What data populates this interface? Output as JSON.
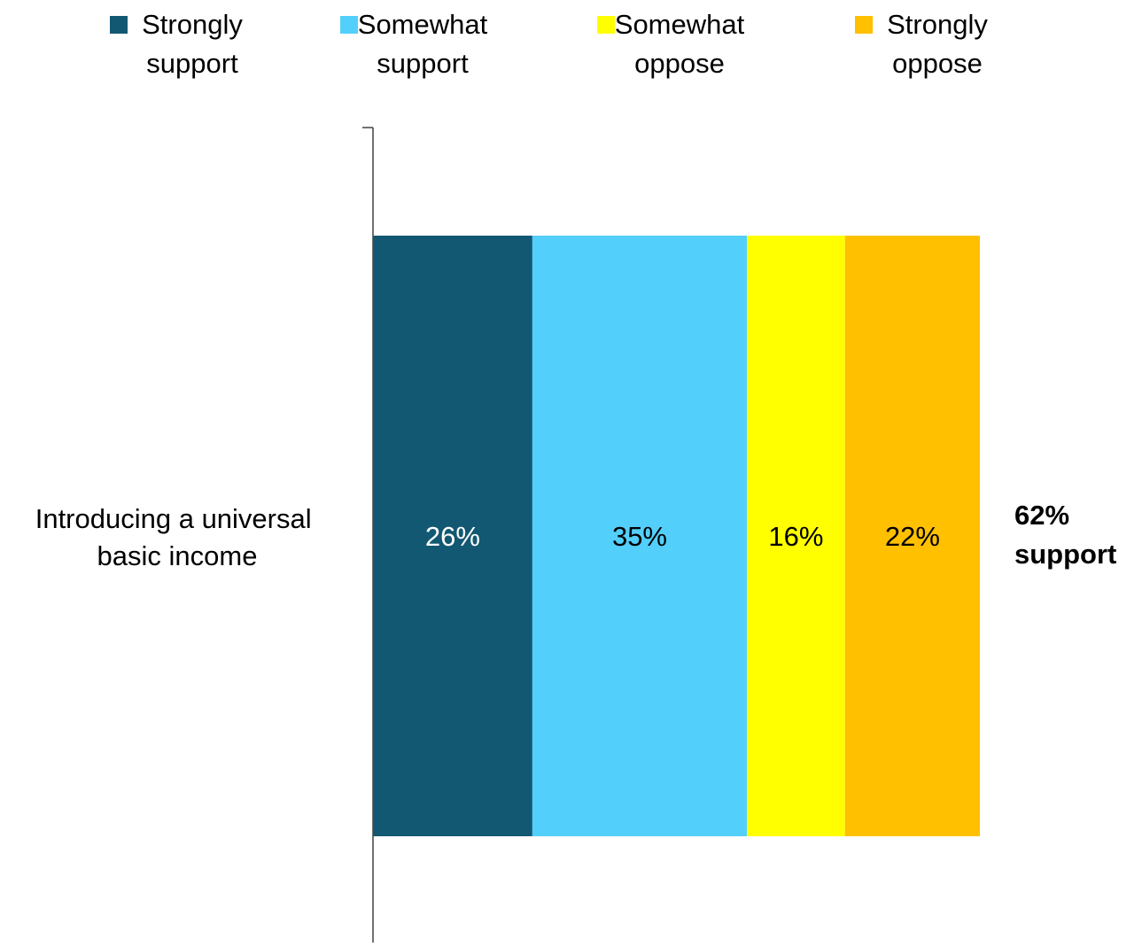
{
  "chart_data": {
    "type": "bar",
    "orientation": "horizontal",
    "stacked": true,
    "categories": [
      "Introducing a universal basic income"
    ],
    "series": [
      {
        "name": "Strongly support",
        "values": [
          26
        ],
        "label": "26%",
        "color": "#135872",
        "label_color": "#ffffff"
      },
      {
        "name": "Somewhat support",
        "values": [
          35
        ],
        "label": "35%",
        "color": "#53CFFB",
        "label_color": "#000000"
      },
      {
        "name": "Somewhat oppose",
        "values": [
          16
        ],
        "label": "16%",
        "color": "#FFFF00",
        "label_color": "#000000"
      },
      {
        "name": "Strongly oppose",
        "values": [
          22
        ],
        "label": "22%",
        "color": "#FFC000",
        "label_color": "#000000"
      }
    ],
    "legend": {
      "placement": "top",
      "entries": [
        {
          "line1": "Strongly",
          "line2": "support"
        },
        {
          "line1": "Somewhat",
          "line2": "support"
        },
        {
          "line1": "Somewhat",
          "line2": "oppose"
        },
        {
          "line1": "Strongly",
          "line2": "oppose"
        }
      ]
    },
    "category_label_lines": [
      "Introducing a universal",
      "basic income"
    ],
    "annotation": {
      "line1": "62%",
      "line2": "support"
    },
    "title": "",
    "xlabel": "",
    "ylabel": "",
    "grid": false
  }
}
